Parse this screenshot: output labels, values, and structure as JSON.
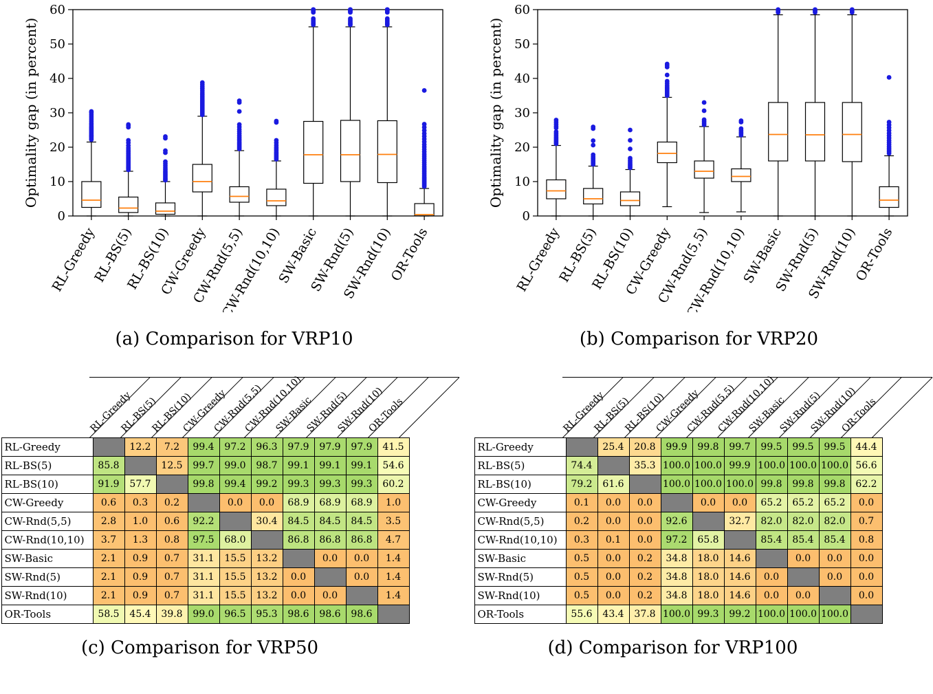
{
  "styles": {
    "outlier_color": "#1a1ae0",
    "median_color": "#ff7f0e",
    "box_edge_color": "#000000",
    "diag_cell_color": "#7f7f7f",
    "cmap": {
      "low": "#fcbe6e",
      "mid": "#ffffbf",
      "high": "#a6d96a"
    }
  },
  "methods": [
    "RL-Greedy",
    "RL-BS(5)",
    "RL-BS(10)",
    "CW-Greedy",
    "CW-Rnd(5,5)",
    "CW-Rnd(10,10)",
    "SW-Basic",
    "SW-Rnd(5)",
    "SW-Rnd(10)",
    "OR-Tools"
  ],
  "chart_data": [
    {
      "type": "boxplot",
      "title": "(a) Comparison for VRP10",
      "ylabel": "Optimality gap (in percent)",
      "ylim": [
        0,
        60
      ],
      "yticks": [
        0,
        10,
        20,
        30,
        40,
        50,
        60
      ],
      "categories": [
        "RL-Greedy",
        "RL-BS(5)",
        "RL-BS(10)",
        "CW-Greedy",
        "CW-Rnd(5,5)",
        "CW-Rnd(10,10)",
        "SW-Basic",
        "SW-Rnd(5)",
        "SW-Rnd(10)",
        "OR-Tools"
      ],
      "boxes": [
        {
          "whislo": 0,
          "q1": 2.5,
          "med": 4.6,
          "q3": 10,
          "whishi": 21.5,
          "outliers": [
            22.2,
            22.6,
            23,
            23.3,
            23.6,
            24,
            24.4,
            24.8,
            25.2,
            25.6,
            26,
            26.5,
            27,
            27.6,
            28.2,
            28.8,
            29.4,
            30,
            30.4
          ]
        },
        {
          "whislo": 0,
          "q1": 1,
          "med": 2.3,
          "q3": 5.5,
          "whishi": 13,
          "outliers": [
            13.4,
            13.8,
            14.1,
            14.4,
            14.8,
            15.2,
            15.6,
            16,
            16.4,
            16.8,
            17.2,
            17.7,
            18.2,
            18.7,
            19.2,
            19.8,
            20.5,
            21.3,
            22,
            25.8,
            26.3,
            26.6
          ]
        },
        {
          "whislo": 0,
          "q1": 0.5,
          "med": 1.4,
          "q3": 3.8,
          "whishi": 10,
          "outliers": [
            10.4,
            10.7,
            11,
            11.4,
            11.8,
            12.2,
            12.6,
            13,
            13.5,
            14,
            14.6,
            15.2,
            15.8,
            18.4,
            19,
            22.6,
            23.1
          ]
        },
        {
          "whislo": 0,
          "q1": 7,
          "med": 10,
          "q3": 15,
          "whishi": 29,
          "outliers": [
            29.4,
            29.8,
            30.2,
            30.6,
            31,
            31.4,
            31.8,
            32.2,
            32.6,
            33,
            33.4,
            33.8,
            34.3,
            34.8,
            35.3,
            35.8,
            36.4,
            37,
            37.6,
            38.2,
            38.8
          ]
        },
        {
          "whislo": 0,
          "q1": 4,
          "med": 5.7,
          "q3": 8.5,
          "whishi": 19,
          "outliers": [
            19.5,
            19.9,
            20.3,
            20.7,
            21.1,
            21.5,
            22,
            22.4,
            22.9,
            23.4,
            24,
            24.6,
            25.2,
            25.9,
            26.6,
            30.4,
            33,
            33.5
          ]
        },
        {
          "whislo": 0,
          "q1": 3,
          "med": 4.4,
          "q3": 7.8,
          "whishi": 16,
          "outliers": [
            16.5,
            16.9,
            17.3,
            17.7,
            18.1,
            18.5,
            19,
            19.5,
            20,
            20.6,
            21.3,
            22,
            27.2,
            27.6
          ]
        },
        {
          "whislo": 0,
          "q1": 9.5,
          "med": 17.8,
          "q3": 27.5,
          "whishi": 55,
          "outliers": [
            55.6,
            55.9,
            56.2,
            56.6,
            57,
            57.4,
            59.2,
            59.5,
            59.7,
            59.9,
            60,
            60,
            60,
            60
          ]
        },
        {
          "whislo": 0,
          "q1": 10,
          "med": 17.8,
          "q3": 27.8,
          "whishi": 55,
          "outliers": [
            55.6,
            55.9,
            56.2,
            56.6,
            57,
            57.4,
            59.2,
            59.5,
            59.7,
            59.9,
            60,
            60,
            60,
            60
          ]
        },
        {
          "whislo": 0,
          "q1": 9.7,
          "med": 17.9,
          "q3": 27.7,
          "whishi": 55,
          "outliers": [
            55.6,
            55.9,
            56.2,
            56.6,
            57,
            57.4,
            59.2,
            59.5,
            59.7,
            59.9,
            60,
            60,
            60,
            60
          ]
        },
        {
          "whislo": 0,
          "q1": 0.05,
          "med": 0.4,
          "q3": 3.6,
          "whishi": 8,
          "outliers": [
            8.6,
            9,
            9.4,
            9.8,
            10.2,
            10.6,
            11,
            11.4,
            11.9,
            12.4,
            12.9,
            13.4,
            13.9,
            14.4,
            15,
            15.6,
            16.2,
            16.8,
            17.4,
            18,
            18.7,
            19.4,
            20.1,
            20.8,
            21.6,
            22.4,
            23.2,
            24,
            24.9,
            25.8,
            26.7,
            36.5
          ]
        }
      ]
    },
    {
      "type": "boxplot",
      "title": "(b) Comparison for VRP20",
      "ylabel": "Optimality gap (in percent)",
      "ylim": [
        0,
        60
      ],
      "yticks": [
        0,
        10,
        20,
        30,
        40,
        50,
        60
      ],
      "categories": [
        "RL-Greedy",
        "RL-BS(5)",
        "RL-BS(10)",
        "CW-Greedy",
        "CW-Rnd(5,5)",
        "CW-Rnd(10,10)",
        "SW-Basic",
        "SW-Rnd(5)",
        "SW-Rnd(10)",
        "OR-Tools"
      ],
      "boxes": [
        {
          "whislo": 0,
          "q1": 5,
          "med": 7.3,
          "q3": 10.5,
          "whishi": 20.5,
          "outliers": [
            21,
            21.4,
            21.8,
            22.2,
            22.6,
            23,
            23.5,
            24,
            24.5,
            25.6,
            26.1,
            26.7,
            27.3,
            27.9
          ]
        },
        {
          "whislo": 0,
          "q1": 3.5,
          "med": 5,
          "q3": 8,
          "whishi": 14.5,
          "outliers": [
            15,
            15.4,
            15.8,
            16.2,
            16.7,
            17.2,
            17.8,
            20.6,
            21.9,
            25.4,
            25.9
          ]
        },
        {
          "whislo": 0,
          "q1": 3,
          "med": 4.5,
          "q3": 7,
          "whishi": 13.5,
          "outliers": [
            14,
            14.4,
            14.8,
            15.2,
            15.7,
            16.2,
            16.8,
            19.5,
            22,
            25
          ]
        },
        {
          "whislo": 2.7,
          "q1": 15.5,
          "med": 18.2,
          "q3": 21.5,
          "whishi": 34.5,
          "outliers": [
            35,
            35.4,
            35.8,
            36.2,
            36.6,
            37,
            37.5,
            38,
            38.6,
            39.2,
            41,
            43.3,
            43.8,
            44.2
          ]
        },
        {
          "whislo": 1,
          "q1": 11,
          "med": 13,
          "q3": 16,
          "whishi": 26,
          "outliers": [
            26.5,
            27,
            27.5,
            28,
            30.6,
            33
          ]
        },
        {
          "whislo": 1.2,
          "q1": 10,
          "med": 11.5,
          "q3": 13.7,
          "whishi": 23,
          "outliers": [
            23.5,
            24,
            24.4,
            24.9,
            25.4,
            27.3,
            27.7
          ]
        },
        {
          "whislo": 0,
          "q1": 16,
          "med": 23.7,
          "q3": 33,
          "whishi": 58.5,
          "outliers": [
            59.2,
            59.5,
            59.8,
            60,
            60
          ]
        },
        {
          "whislo": 0,
          "q1": 16,
          "med": 23.6,
          "q3": 33,
          "whishi": 58.5,
          "outliers": [
            59.2,
            59.5,
            59.8,
            60,
            60
          ]
        },
        {
          "whislo": 0,
          "q1": 15.8,
          "med": 23.7,
          "q3": 33,
          "whishi": 58.5,
          "outliers": [
            59.2,
            59.5,
            59.8,
            60,
            60
          ]
        },
        {
          "whislo": 0,
          "q1": 2.5,
          "med": 4.6,
          "q3": 8.5,
          "whishi": 17.5,
          "outliers": [
            18.2,
            18.7,
            19.2,
            19.7,
            20.2,
            20.8,
            21.4,
            22,
            22.7,
            23.4,
            24.1,
            24.9,
            25.7,
            26.5,
            27.3,
            40.3
          ]
        }
      ]
    },
    {
      "type": "table",
      "title": "(c) Comparison for VRP50",
      "columns": [
        "RL-Greedy",
        "RL-BS(5)",
        "RL-BS(10)",
        "CW-Greedy",
        "CW-Rnd(5,5)",
        "CW-Rnd(10,10)",
        "SW-Basic",
        "SW-Rnd(5)",
        "SW-Rnd(10)",
        "OR-Tools"
      ],
      "rows": [
        {
          "label": "RL-Greedy",
          "values": [
            null,
            "12.2",
            "7.2",
            "99.4",
            "97.2",
            "96.3",
            "97.9",
            "97.9",
            "97.9",
            "41.5"
          ]
        },
        {
          "label": "RL-BS(5)",
          "values": [
            "85.8",
            null,
            "12.5",
            "99.7",
            "99.0",
            "98.7",
            "99.1",
            "99.1",
            "99.1",
            "54.6"
          ]
        },
        {
          "label": "RL-BS(10)",
          "values": [
            "91.9",
            "57.7",
            null,
            "99.8",
            "99.4",
            "99.2",
            "99.3",
            "99.3",
            "99.3",
            "60.2"
          ]
        },
        {
          "label": "CW-Greedy",
          "values": [
            "0.6",
            "0.3",
            "0.2",
            null,
            "0.0",
            "0.0",
            "68.9",
            "68.9",
            "68.9",
            "1.0"
          ]
        },
        {
          "label": "CW-Rnd(5,5)",
          "values": [
            "2.8",
            "1.0",
            "0.6",
            "92.2",
            null,
            "30.4",
            "84.5",
            "84.5",
            "84.5",
            "3.5"
          ]
        },
        {
          "label": "CW-Rnd(10,10)",
          "values": [
            "3.7",
            "1.3",
            "0.8",
            "97.5",
            "68.0",
            null,
            "86.8",
            "86.8",
            "86.8",
            "4.7"
          ]
        },
        {
          "label": "SW-Basic",
          "values": [
            "2.1",
            "0.9",
            "0.7",
            "31.1",
            "15.5",
            "13.2",
            null,
            "0.0",
            "0.0",
            "1.4"
          ]
        },
        {
          "label": "SW-Rnd(5)",
          "values": [
            "2.1",
            "0.9",
            "0.7",
            "31.1",
            "15.5",
            "13.2",
            "0.0",
            null,
            "0.0",
            "1.4"
          ]
        },
        {
          "label": "SW-Rnd(10)",
          "values": [
            "2.1",
            "0.9",
            "0.7",
            "31.1",
            "15.5",
            "13.2",
            "0.0",
            "0.0",
            null,
            "1.4"
          ]
        },
        {
          "label": "OR-Tools",
          "values": [
            "58.5",
            "45.4",
            "39.8",
            "99.0",
            "96.5",
            "95.3",
            "98.6",
            "98.6",
            "98.6",
            null
          ]
        }
      ]
    },
    {
      "type": "table",
      "title": "(d) Comparison for VRP100",
      "columns": [
        "RL-Greedy",
        "RL-BS(5)",
        "RL-BS(10)",
        "CW-Greedy",
        "CW-Rnd(5,5)",
        "CW-Rnd(10,10)",
        "SW-Basic",
        "SW-Rnd(5)",
        "SW-Rnd(10)",
        "OR-Tools"
      ],
      "rows": [
        {
          "label": "RL-Greedy",
          "values": [
            null,
            "25.4",
            "20.8",
            "99.9",
            "99.8",
            "99.7",
            "99.5",
            "99.5",
            "99.5",
            "44.4"
          ]
        },
        {
          "label": "RL-BS(5)",
          "values": [
            "74.4",
            null,
            "35.3",
            "100.0",
            "100.0",
            "99.9",
            "100.0",
            "100.0",
            "100.0",
            "56.6"
          ]
        },
        {
          "label": "RL-BS(10)",
          "values": [
            "79.2",
            "61.6",
            null,
            "100.0",
            "100.0",
            "100.0",
            "99.8",
            "99.8",
            "99.8",
            "62.2"
          ]
        },
        {
          "label": "CW-Greedy",
          "values": [
            "0.1",
            "0.0",
            "0.0",
            null,
            "0.0",
            "0.0",
            "65.2",
            "65.2",
            "65.2",
            "0.0"
          ]
        },
        {
          "label": "CW-Rnd(5,5)",
          "values": [
            "0.2",
            "0.0",
            "0.0",
            "92.6",
            null,
            "32.7",
            "82.0",
            "82.0",
            "82.0",
            "0.7"
          ]
        },
        {
          "label": "CW-Rnd(10,10)",
          "values": [
            "0.3",
            "0.1",
            "0.0",
            "97.2",
            "65.8",
            null,
            "85.4",
            "85.4",
            "85.4",
            "0.8"
          ]
        },
        {
          "label": "SW-Basic",
          "values": [
            "0.5",
            "0.0",
            "0.2",
            "34.8",
            "18.0",
            "14.6",
            null,
            "0.0",
            "0.0",
            "0.0"
          ]
        },
        {
          "label": "SW-Rnd(5)",
          "values": [
            "0.5",
            "0.0",
            "0.2",
            "34.8",
            "18.0",
            "14.6",
            "0.0",
            null,
            "0.0",
            "0.0"
          ]
        },
        {
          "label": "SW-Rnd(10)",
          "values": [
            "0.5",
            "0.0",
            "0.2",
            "34.8",
            "18.0",
            "14.6",
            "0.0",
            "0.0",
            null,
            "0.0"
          ]
        },
        {
          "label": "OR-Tools",
          "values": [
            "55.6",
            "43.4",
            "37.8",
            "100.0",
            "99.3",
            "99.2",
            "100.0",
            "100.0",
            "100.0",
            null
          ]
        }
      ]
    }
  ]
}
